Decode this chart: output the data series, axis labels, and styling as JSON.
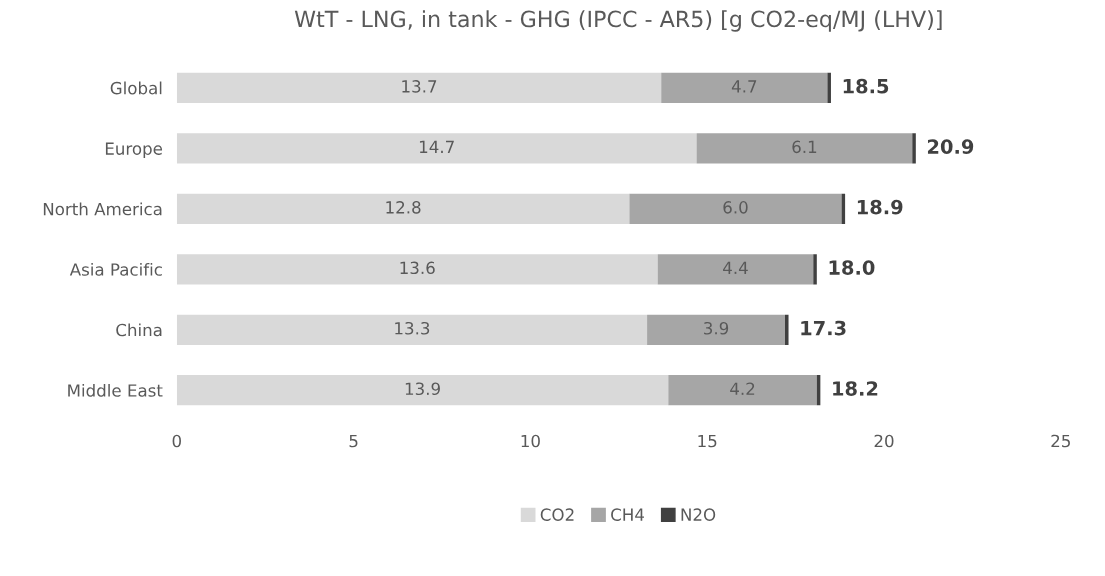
{
  "chart_data": {
    "type": "bar",
    "orientation": "horizontal",
    "stacked": true,
    "title": "WtT - LNG, in tank - GHG (IPCC - AR5) [g CO2-eq/MJ (LHV)]",
    "categories": [
      "Global",
      "Europe",
      "North America",
      "Asia Pacific",
      "China",
      "Middle East"
    ],
    "series": [
      {
        "name": "CO2",
        "color": "#d9d9d9",
        "values": [
          13.7,
          14.7,
          12.8,
          13.6,
          13.3,
          13.9
        ],
        "value_labels": [
          "13.7",
          "14.7",
          "12.8",
          "13.6",
          "13.3",
          "13.9"
        ]
      },
      {
        "name": "CH4",
        "color": "#a6a6a6",
        "values": [
          4.7,
          6.1,
          6.0,
          4.4,
          3.9,
          4.2
        ],
        "value_labels": [
          "4.7",
          "6.1",
          "6.0",
          "4.4",
          "3.9",
          "4.2"
        ]
      },
      {
        "name": "N2O",
        "color": "#404040",
        "values": [
          0.1,
          0.1,
          0.1,
          0.1,
          0.1,
          0.1
        ]
      }
    ],
    "totals": [
      "18.5",
      "20.9",
      "18.9",
      "18.0",
      "17.3",
      "18.2"
    ],
    "xlim": [
      0,
      25
    ],
    "xticks": [
      0,
      5,
      10,
      15,
      20,
      25
    ],
    "grid": false,
    "legend": "bottom"
  }
}
